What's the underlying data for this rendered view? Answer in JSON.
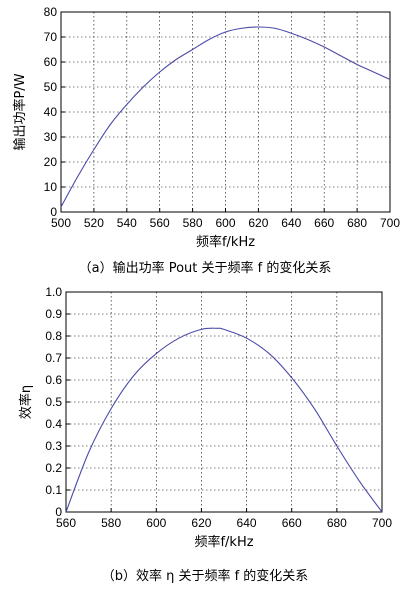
{
  "chart_data": [
    {
      "type": "line",
      "xlabel": "频率f/kHz",
      "ylabel": "输出功率P/W",
      "xlim": [
        500,
        700
      ],
      "ylim": [
        0,
        80
      ],
      "xticks": [
        "500",
        "520",
        "540",
        "560",
        "580",
        "600",
        "620",
        "640",
        "660",
        "680",
        "700"
      ],
      "yticks": [
        "0",
        "10",
        "20",
        "30",
        "40",
        "50",
        "60",
        "70",
        "80"
      ],
      "grid": true,
      "series": [
        {
          "x": [
            500,
            510,
            520,
            530,
            540,
            550,
            560,
            570,
            580,
            590,
            600,
            610,
            620,
            630,
            640,
            650,
            660,
            670,
            680,
            690,
            700
          ],
          "y": [
            2,
            14,
            25,
            35,
            43,
            50,
            56,
            61,
            65,
            69,
            72,
            73.5,
            74,
            73.5,
            71.5,
            69,
            66,
            62.5,
            59,
            56,
            53
          ]
        }
      ],
      "caption": "（a）输出功率 Pout 关于频率 f 的变化关系"
    },
    {
      "type": "line",
      "xlabel": "频率f/kHz",
      "ylabel": "效率η",
      "xlim": [
        560,
        700
      ],
      "ylim": [
        0,
        1.0
      ],
      "xticks": [
        "560",
        "580",
        "600",
        "620",
        "640",
        "660",
        "680",
        "700"
      ],
      "yticks": [
        "0",
        "0.1",
        "0.2",
        "0.3",
        "0.4",
        "0.5",
        "0.6",
        "0.7",
        "0.8",
        "0.9",
        "1.0"
      ],
      "grid": true,
      "series": [
        {
          "x": [
            560,
            570,
            580,
            590,
            600,
            610,
            620,
            627,
            630,
            640,
            650,
            660,
            670,
            680,
            690,
            700
          ],
          "y": [
            0,
            0.27,
            0.47,
            0.62,
            0.72,
            0.79,
            0.83,
            0.835,
            0.83,
            0.79,
            0.72,
            0.61,
            0.47,
            0.3,
            0.14,
            0
          ]
        }
      ],
      "caption": "（b）效率 η 关于频率 f 的变化关系"
    }
  ]
}
